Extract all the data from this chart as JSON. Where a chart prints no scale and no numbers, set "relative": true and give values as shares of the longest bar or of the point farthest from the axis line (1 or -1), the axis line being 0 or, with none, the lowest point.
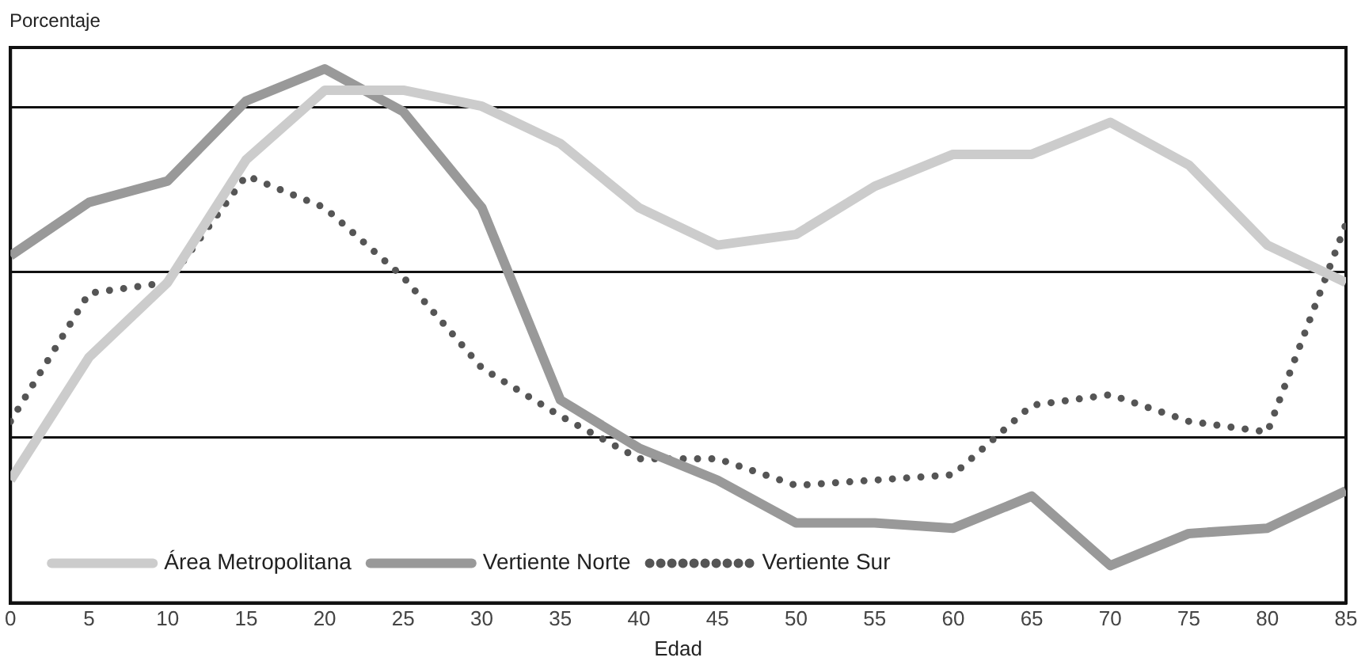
{
  "chart_data": {
    "type": "line",
    "ylabel": "Porcentaje",
    "xlabel": "Edad",
    "relative": true,
    "grid": "y",
    "legend": "bottom left",
    "marker": "none",
    "x": [
      0,
      5,
      10,
      15,
      20,
      25,
      30,
      35,
      40,
      45,
      50,
      55,
      60,
      65,
      70,
      75,
      80,
      85
    ],
    "xlim": [
      0,
      85
    ],
    "xticks": [
      0,
      5,
      10,
      15,
      20,
      25,
      30,
      35,
      40,
      45,
      50,
      55,
      60,
      65,
      70,
      75,
      80,
      85
    ],
    "series": [
      {
        "name": "Área Metropolitana",
        "color": "#cccccc",
        "line_style": "solid",
        "values": [
          0.23,
          0.46,
          0.6,
          0.83,
          0.96,
          0.96,
          0.93,
          0.86,
          0.74,
          0.67,
          0.69,
          0.78,
          0.84,
          0.84,
          0.9,
          0.82,
          0.67,
          0.6
        ]
      },
      {
        "name": "Vertiente Norte",
        "color": "#999999",
        "line_style": "solid",
        "values": [
          0.65,
          0.75,
          0.79,
          0.94,
          1,
          0.92,
          0.74,
          0.38,
          0.29,
          0.23,
          0.15,
          0.15,
          0.14,
          0.2,
          0.07,
          0.13,
          0.14,
          0.21
        ]
      },
      {
        "name": "Vertiente Sur",
        "color": "#555555",
        "line_style": "dotted",
        "values": [
          0.34,
          0.58,
          0.6,
          0.8,
          0.74,
          0.61,
          0.44,
          0.35,
          0.27,
          0.27,
          0.22,
          0.23,
          0.24,
          0.37,
          0.39,
          0.34,
          0.32,
          0.71
        ]
      }
    ]
  }
}
